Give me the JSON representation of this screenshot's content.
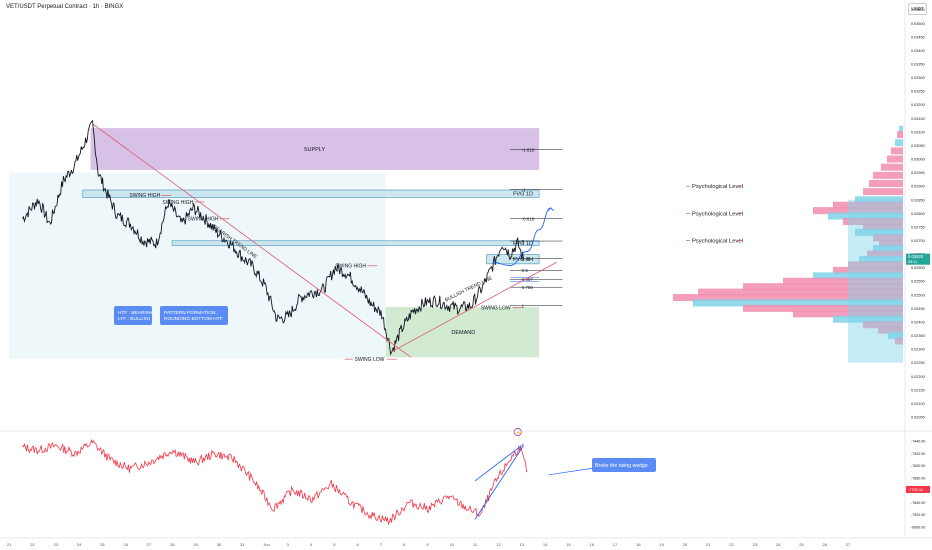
{
  "header": {
    "title": "VET/USDT Perpetual Contract · 1h · BINGX",
    "currency": "USDT"
  },
  "colors": {
    "supply": "#c7a6dc",
    "fvg": "#c4e3ec",
    "fvg_border": "#3f8fb5",
    "demand": "#c9e6c9",
    "label_blue": "#5b8cf5",
    "bearish_trend": "#e0556a",
    "bullish_trend": "#e0556a",
    "price_line": "#131722",
    "osc_line": "#f23645",
    "profile_pink": "#f28db0",
    "profile_cyan": "#7fd3e8",
    "projection": "#2962ff"
  },
  "zones": [
    {
      "name": "SUPPLY",
      "label": "SUPPLY",
      "x_from": "Jun 23 12:00",
      "x_to": "Jul 12 18:00",
      "y_from": 0.0296,
      "y_to": 0.03114
    },
    {
      "name": "FVG 1D upper",
      "label": "FVG 1D",
      "x_from": "Jun 23 04:00",
      "x_to": "Jul 12 18:00",
      "y_from": 0.02859,
      "y_to": 0.02886
    },
    {
      "name": "FVG 1D lower",
      "label": "FVG 1D",
      "x_from": "Jun 27 00:00",
      "x_to": "Jul 12 18:00",
      "y_from": 0.02682,
      "y_to": 0.02699
    },
    {
      "name": "FVG 4H",
      "label": "FVG 4H",
      "x_from": "Jul 10 12:00",
      "x_to": "Jul 12 18:00",
      "y_from": 0.02614,
      "y_to": 0.02648
    },
    {
      "name": "DEMAND",
      "label": "DEMAND",
      "x_from": "Jul 6 04:00",
      "x_to": "Jul 12 18:00",
      "y_from": 0.0227,
      "y_to": 0.02455
    }
  ],
  "fib_levels": [
    {
      "label": "-1.618",
      "value": 0.03035
    },
    {
      "label": "-1",
      "value": 0.02888
    },
    {
      "label": "-0.618",
      "value": 0.02781
    },
    {
      "label": "0",
      "value": 0.02698
    },
    {
      "label": "0.28",
      "value": 0.02633
    },
    {
      "label": "0.5",
      "value": 0.0259
    },
    {
      "label": "0.65?",
      "value": 0.02557
    },
    {
      "label": "0.786",
      "value": 0.02528
    },
    {
      "label": "1",
      "value": 0.0246
    }
  ],
  "swing_labels": [
    {
      "text": "SWING HIGH",
      "x": "Jun 25 04:00",
      "y": 0.02866
    },
    {
      "text": "SWING HIGH",
      "x": "Jun 26 14:00",
      "y": 0.02842
    },
    {
      "text": "SWING HIGH",
      "x": "Jun 27 16:00",
      "y": 0.0278
    },
    {
      "text": "SWING HIGH",
      "x": "Jul 4 00:00",
      "y": 0.02607
    },
    {
      "text": "SWING LOW",
      "x": "Jul 10 06:00",
      "y": 0.02453
    },
    {
      "text": "SWING LOW",
      "x": "Jul 4 20:00",
      "y": 0.02263
    }
  ],
  "trend_labels": [
    {
      "text": "BEARISH TREND LINE",
      "x": "Jun 28 18:00",
      "y": 0.02748
    },
    {
      "text": "BULLISH TREND LINE",
      "x": "Jul 8 18:00",
      "y": 0.02475
    }
  ],
  "psychological_levels": [
    {
      "label": "Psychological Level",
      "value": 0.029
    },
    {
      "label": "Psychological Level",
      "value": 0.028
    },
    {
      "label": "Psychological Level",
      "value": 0.027
    }
  ],
  "notes": [
    {
      "lines": [
        "HTF : BEARISH",
        "LTF : BULLISH"
      ]
    },
    {
      "lines": [
        "PATTERN FORMATION:",
        "ROUNDING BOTTOM HTF"
      ]
    }
  ],
  "oscillator": {
    "annotation": "Broke the rising wedge",
    "current_label": "-7755.34",
    "y_ticks": [
      "-7440.00",
      "-7520.00",
      "-7600.00",
      "-7680.00",
      "-7760.00",
      "-7840.00",
      "-7920.00",
      "-8000.00"
    ],
    "marker": "⚡"
  },
  "price_labels": {
    "current": "0.02633",
    "current_sub": "08:11"
  },
  "chart_data": {
    "type": "line",
    "title": "VET/USDT Perpetual Contract · 1h · BINGX",
    "ylim": [
      0.0205,
      0.0356
    ],
    "y_ticks": [
      "0.03550",
      "0.03500",
      "0.03450",
      "0.03400",
      "0.03350",
      "0.03300",
      "0.03250",
      "0.03200",
      "0.03150",
      "0.03100",
      "0.03050",
      "0.03000",
      "0.02950",
      "0.02900",
      "0.02850",
      "0.02800",
      "0.02750",
      "0.02700",
      "0.02650",
      "0.02600",
      "0.02550",
      "0.02500",
      "0.02450",
      "0.02400",
      "0.02350",
      "0.02300",
      "0.02250",
      "0.02200",
      "0.02150",
      "0.02100",
      "0.02050"
    ],
    "x_ticks": [
      "21",
      "22",
      "23",
      "24",
      "25",
      "26",
      "27",
      "28",
      "29",
      "30",
      "31",
      "Jun",
      "3",
      "4",
      "5",
      "6",
      "7",
      "8",
      "9",
      "10",
      "11",
      "12",
      "13",
      "14",
      "15",
      "16",
      "17",
      "18",
      "19",
      "20",
      "21",
      "22",
      "23",
      "24",
      "25",
      "26",
      "27"
    ],
    "price_anchors": [
      {
        "t": "Jun 20 14:00",
        "v": 0.0278
      },
      {
        "t": "Jun 21 06:00",
        "v": 0.0285
      },
      {
        "t": "Jun 21 18:00",
        "v": 0.0276
      },
      {
        "t": "Jun 22 08:00",
        "v": 0.0292
      },
      {
        "t": "Jun 22 20:00",
        "v": 0.0298
      },
      {
        "t": "Jun 23 06:00",
        "v": 0.0306
      },
      {
        "t": "Jun 23 14:00",
        "v": 0.0313
      },
      {
        "t": "Jun 23 20:00",
        "v": 0.0295
      },
      {
        "t": "Jun 24 04:00",
        "v": 0.0288
      },
      {
        "t": "Jun 24 16:00",
        "v": 0.0279
      },
      {
        "t": "Jun 25 06:00",
        "v": 0.0276
      },
      {
        "t": "Jun 25 18:00",
        "v": 0.027
      },
      {
        "t": "Jun 26 08:00",
        "v": 0.0269
      },
      {
        "t": "Jun 26 20:00",
        "v": 0.0284
      },
      {
        "t": "Jun 27 10:00",
        "v": 0.0276
      },
      {
        "t": "Jun 27 22:00",
        "v": 0.0282
      },
      {
        "t": "Jun 28 10:00",
        "v": 0.0278
      },
      {
        "t": "Jun 28 22:00",
        "v": 0.0273
      },
      {
        "t": "Jun 29 12:00",
        "v": 0.0269
      },
      {
        "t": "Jun 30 00:00",
        "v": 0.0264
      },
      {
        "t": "Jun 30 12:00",
        "v": 0.026
      },
      {
        "t": "Jul 1 00:00",
        "v": 0.0253
      },
      {
        "t": "Jul 1 12:00",
        "v": 0.0241
      },
      {
        "t": "Jul 2 00:00",
        "v": 0.0242
      },
      {
        "t": "Jul 2 12:00",
        "v": 0.0249
      },
      {
        "t": "Jul 3 00:00",
        "v": 0.0251
      },
      {
        "t": "Jul 3 12:00",
        "v": 0.0252
      },
      {
        "t": "Jul 4 00:00",
        "v": 0.026
      },
      {
        "t": "Jul 4 12:00",
        "v": 0.0258
      },
      {
        "t": "Jul 5 00:00",
        "v": 0.0253
      },
      {
        "t": "Jul 5 12:00",
        "v": 0.0247
      },
      {
        "t": "Jul 6 00:00",
        "v": 0.0243
      },
      {
        "t": "Jul 6 10:00",
        "v": 0.0229
      },
      {
        "t": "Jul 6 20:00",
        "v": 0.0237
      },
      {
        "t": "Jul 7 08:00",
        "v": 0.0244
      },
      {
        "t": "Jul 7 20:00",
        "v": 0.0247
      },
      {
        "t": "Jul 8 08:00",
        "v": 0.0248
      },
      {
        "t": "Jul 8 20:00",
        "v": 0.0246
      },
      {
        "t": "Jul 9 08:00",
        "v": 0.0245
      },
      {
        "t": "Jul 9 20:00",
        "v": 0.0246
      },
      {
        "t": "Jul 10 08:00",
        "v": 0.0253
      },
      {
        "t": "Jul 10 20:00",
        "v": 0.0262
      },
      {
        "t": "Jul 11 04:00",
        "v": 0.0269
      },
      {
        "t": "Jul 11 12:00",
        "v": 0.0265
      },
      {
        "t": "Jul 11 20:00",
        "v": 0.0269
      },
      {
        "t": "Jul 12 02:00",
        "v": 0.0263
      }
    ],
    "oscillator_anchors": [
      {
        "t": "Jun 20 14:00",
        "v": -7480
      },
      {
        "t": "Jun 21 06:00",
        "v": -7500
      },
      {
        "t": "Jun 22 00:00",
        "v": -7470
      },
      {
        "t": "Jun 22 20:00",
        "v": -7520
      },
      {
        "t": "Jun 23 14:00",
        "v": -7450
      },
      {
        "t": "Jun 24 08:00",
        "v": -7560
      },
      {
        "t": "Jun 25 04:00",
        "v": -7620
      },
      {
        "t": "Jun 26 00:00",
        "v": -7580
      },
      {
        "t": "Jun 27 00:00",
        "v": -7500
      },
      {
        "t": "Jun 28 00:00",
        "v": -7580
      },
      {
        "t": "Jun 28 20:00",
        "v": -7520
      },
      {
        "t": "Jun 29 16:00",
        "v": -7560
      },
      {
        "t": "Jun 30 12:00",
        "v": -7700
      },
      {
        "t": "Jul 1 08:00",
        "v": -7880
      },
      {
        "t": "Jul 2 04:00",
        "v": -7760
      },
      {
        "t": "Jul 3 00:00",
        "v": -7820
      },
      {
        "t": "Jul 3 20:00",
        "v": -7720
      },
      {
        "t": "Jul 4 16:00",
        "v": -7840
      },
      {
        "t": "Jul 5 12:00",
        "v": -7920
      },
      {
        "t": "Jul 6 08:00",
        "v": -7960
      },
      {
        "t": "Jul 7 04:00",
        "v": -7840
      },
      {
        "t": "Jul 8 00:00",
        "v": -7880
      },
      {
        "t": "Jul 8 20:00",
        "v": -7800
      },
      {
        "t": "Jul 9 16:00",
        "v": -7880
      },
      {
        "t": "Jul 10 06:00",
        "v": -7920
      },
      {
        "t": "Jul 10 20:00",
        "v": -7720
      },
      {
        "t": "Jul 11 12:00",
        "v": -7560
      },
      {
        "t": "Jul 11 22:00",
        "v": -7480
      },
      {
        "t": "Jul 12 06:00",
        "v": -7640
      }
    ],
    "projection_points": [
      {
        "t": "Jul 10 18:00",
        "v": 0.0262
      },
      {
        "t": "Jul 11 12:00",
        "v": 0.02608
      },
      {
        "t": "Jul 12 06:00",
        "v": 0.0266
      },
      {
        "t": "Jul 12 18:00",
        "v": 0.0274
      },
      {
        "t": "Jul 13 06:00",
        "v": 0.0282
      }
    ]
  }
}
